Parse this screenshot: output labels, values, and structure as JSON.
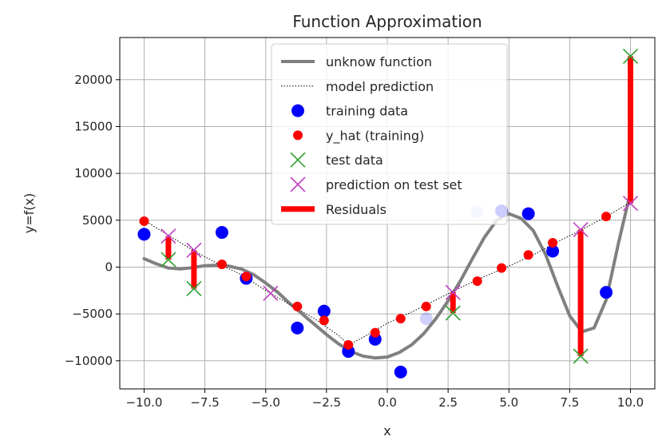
{
  "chart_data": {
    "type": "scatter",
    "title": "Function Approximation",
    "xlabel": "x",
    "ylabel": "y=f(x)",
    "xlim": [
      -11.0,
      11.0
    ],
    "ylim": [
      -13000,
      24500
    ],
    "grid": true,
    "legend_position": "top-center",
    "xticks": [
      -10.0,
      -7.5,
      -5.0,
      -2.5,
      0.0,
      2.5,
      5.0,
      7.5,
      10.0
    ],
    "xtick_labels": [
      "−10.0",
      "−7.5",
      "−5.0",
      "−2.5",
      "0.0",
      "2.5",
      "5.0",
      "7.5",
      "10.0"
    ],
    "yticks": [
      -10000,
      -5000,
      0,
      5000,
      10000,
      15000,
      20000
    ],
    "ytick_labels": [
      "−10000",
      "−5000",
      "0",
      "5000",
      "10000",
      "15000",
      "20000"
    ],
    "series": [
      {
        "name": "unknow function",
        "kind": "line",
        "color": "#808080",
        "x": [
          -10.0,
          -9.5,
          -9.0,
          -8.5,
          -8.0,
          -7.5,
          -7.0,
          -6.5,
          -6.0,
          -5.5,
          -5.0,
          -4.5,
          -4.0,
          -3.5,
          -3.0,
          -2.5,
          -2.0,
          -1.5,
          -1.0,
          -0.5,
          0.0,
          0.5,
          1.0,
          1.5,
          2.0,
          2.5,
          3.0,
          3.5,
          4.0,
          4.5,
          5.0,
          5.5,
          6.0,
          6.5,
          7.0,
          7.5,
          8.0,
          8.5,
          9.0,
          9.5,
          10.0
        ],
        "y": [
          900,
          350,
          -100,
          -200,
          -50,
          150,
          200,
          100,
          -200,
          -800,
          -1700,
          -2700,
          -3900,
          -5000,
          -6100,
          -7200,
          -8200,
          -9000,
          -9500,
          -9700,
          -9600,
          -9100,
          -8300,
          -7100,
          -5500,
          -3600,
          -1500,
          900,
          3200,
          5000,
          5700,
          5200,
          3900,
          1400,
          -2000,
          -5200,
          -6900,
          -6500,
          -3500,
          2500,
          8000
        ]
      },
      {
        "name": "model prediction",
        "kind": "dotted-line",
        "color": "#000000",
        "x": [
          -10.0,
          -9.0,
          -8.0,
          -7.0,
          -6.0,
          -5.0,
          -4.0,
          -3.0,
          -2.0,
          -1.6,
          -1.0,
          0.0,
          1.0,
          2.0,
          3.0,
          4.0,
          5.0,
          6.0,
          7.0,
          8.0,
          9.0,
          10.0
        ],
        "y": [
          5000,
          3400,
          1800,
          400,
          -800,
          -2500,
          -4000,
          -5500,
          -7300,
          -8300,
          -7500,
          -6000,
          -4800,
          -3500,
          -2200,
          -1000,
          100,
          1300,
          2700,
          4000,
          5400,
          6900
        ]
      },
      {
        "name": "training data",
        "kind": "markers",
        "color": "#0000ff",
        "x": [
          -10.0,
          -6.8,
          -5.8,
          -3.7,
          -2.6,
          -1.6,
          -0.5,
          0.55,
          1.6,
          3.7,
          4.7,
          5.8,
          6.8,
          9.0
        ],
        "y": [
          3500,
          3700,
          -1200,
          -6500,
          -4700,
          -9000,
          -7700,
          -11200,
          -5500,
          5900,
          6000,
          5700,
          1700,
          -2700
        ],
        "pale_indices": [
          8,
          9
        ]
      },
      {
        "name": "y_hat (training)",
        "kind": "markers",
        "color": "#ff0000",
        "x": [
          -10.0,
          -6.8,
          -5.8,
          -3.7,
          -2.6,
          -1.6,
          -0.5,
          0.55,
          1.6,
          3.7,
          4.7,
          5.8,
          6.8,
          9.0
        ],
        "y": [
          4900,
          300,
          -1000,
          -4200,
          -5700,
          -8300,
          -7000,
          -5500,
          -4200,
          -1500,
          -100,
          1300,
          2600,
          5400
        ]
      },
      {
        "name": "test data",
        "kind": "x-markers",
        "color": "#2ca02c",
        "x": [
          -9.0,
          -7.95,
          2.7,
          7.95,
          10.0
        ],
        "y": [
          800,
          -2300,
          -4900,
          -9500,
          22500
        ]
      },
      {
        "name": "prediction on test set",
        "kind": "x-markers",
        "color": "#c040c0",
        "x": [
          -9.0,
          -7.95,
          -4.8,
          2.7,
          7.95,
          10.0
        ],
        "y": [
          3300,
          1800,
          -2800,
          -2700,
          4000,
          6800
        ]
      },
      {
        "name": "Residuals",
        "kind": "vertical-bars",
        "color": "#ff0000",
        "x": [
          -9.0,
          -7.95,
          2.7,
          7.95,
          10.0
        ],
        "y_from": [
          800,
          -2300,
          -4900,
          -9500,
          22500
        ],
        "y_to": [
          3300,
          1800,
          -2700,
          4000,
          6800
        ]
      }
    ]
  }
}
